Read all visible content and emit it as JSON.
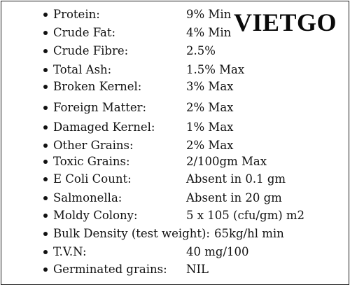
{
  "brand": "VIETGO",
  "specs": [
    {
      "label": "Protein:",
      "value": "9% Min"
    },
    {
      "label": "Crude Fat:",
      "value": "4% Min"
    },
    {
      "label": "Crude Fibre:",
      "value": "2.5%"
    },
    {
      "label": "Total Ash:",
      "value": "1.5% Max"
    },
    {
      "label": "Broken Kernel:",
      "value": "3% Max"
    },
    {
      "label": "Foreign Matter:",
      "value": "2% Max"
    },
    {
      "label": "Damaged Kernel:",
      "value": "1% Max"
    },
    {
      "label": "Other Grains:",
      "value": "2% Max"
    },
    {
      "label": "Toxic Grains:",
      "value": "2/100gm Max"
    },
    {
      "label": "E Coli Count:",
      "value": "Absent in 0.1 gm"
    },
    {
      "label": "Salmonella:",
      "value": "Absent in 20 gm"
    },
    {
      "label": "Moldy Colony:",
      "value": "5 x 105 (cfu/gm) m2"
    },
    {
      "label": "Bulk Density (test weight):",
      "value": "65kg/hl min"
    },
    {
      "label": "T.V.N:",
      "value": "40 mg/100"
    },
    {
      "label": "Germinated grains:",
      "value": "NIL"
    }
  ]
}
